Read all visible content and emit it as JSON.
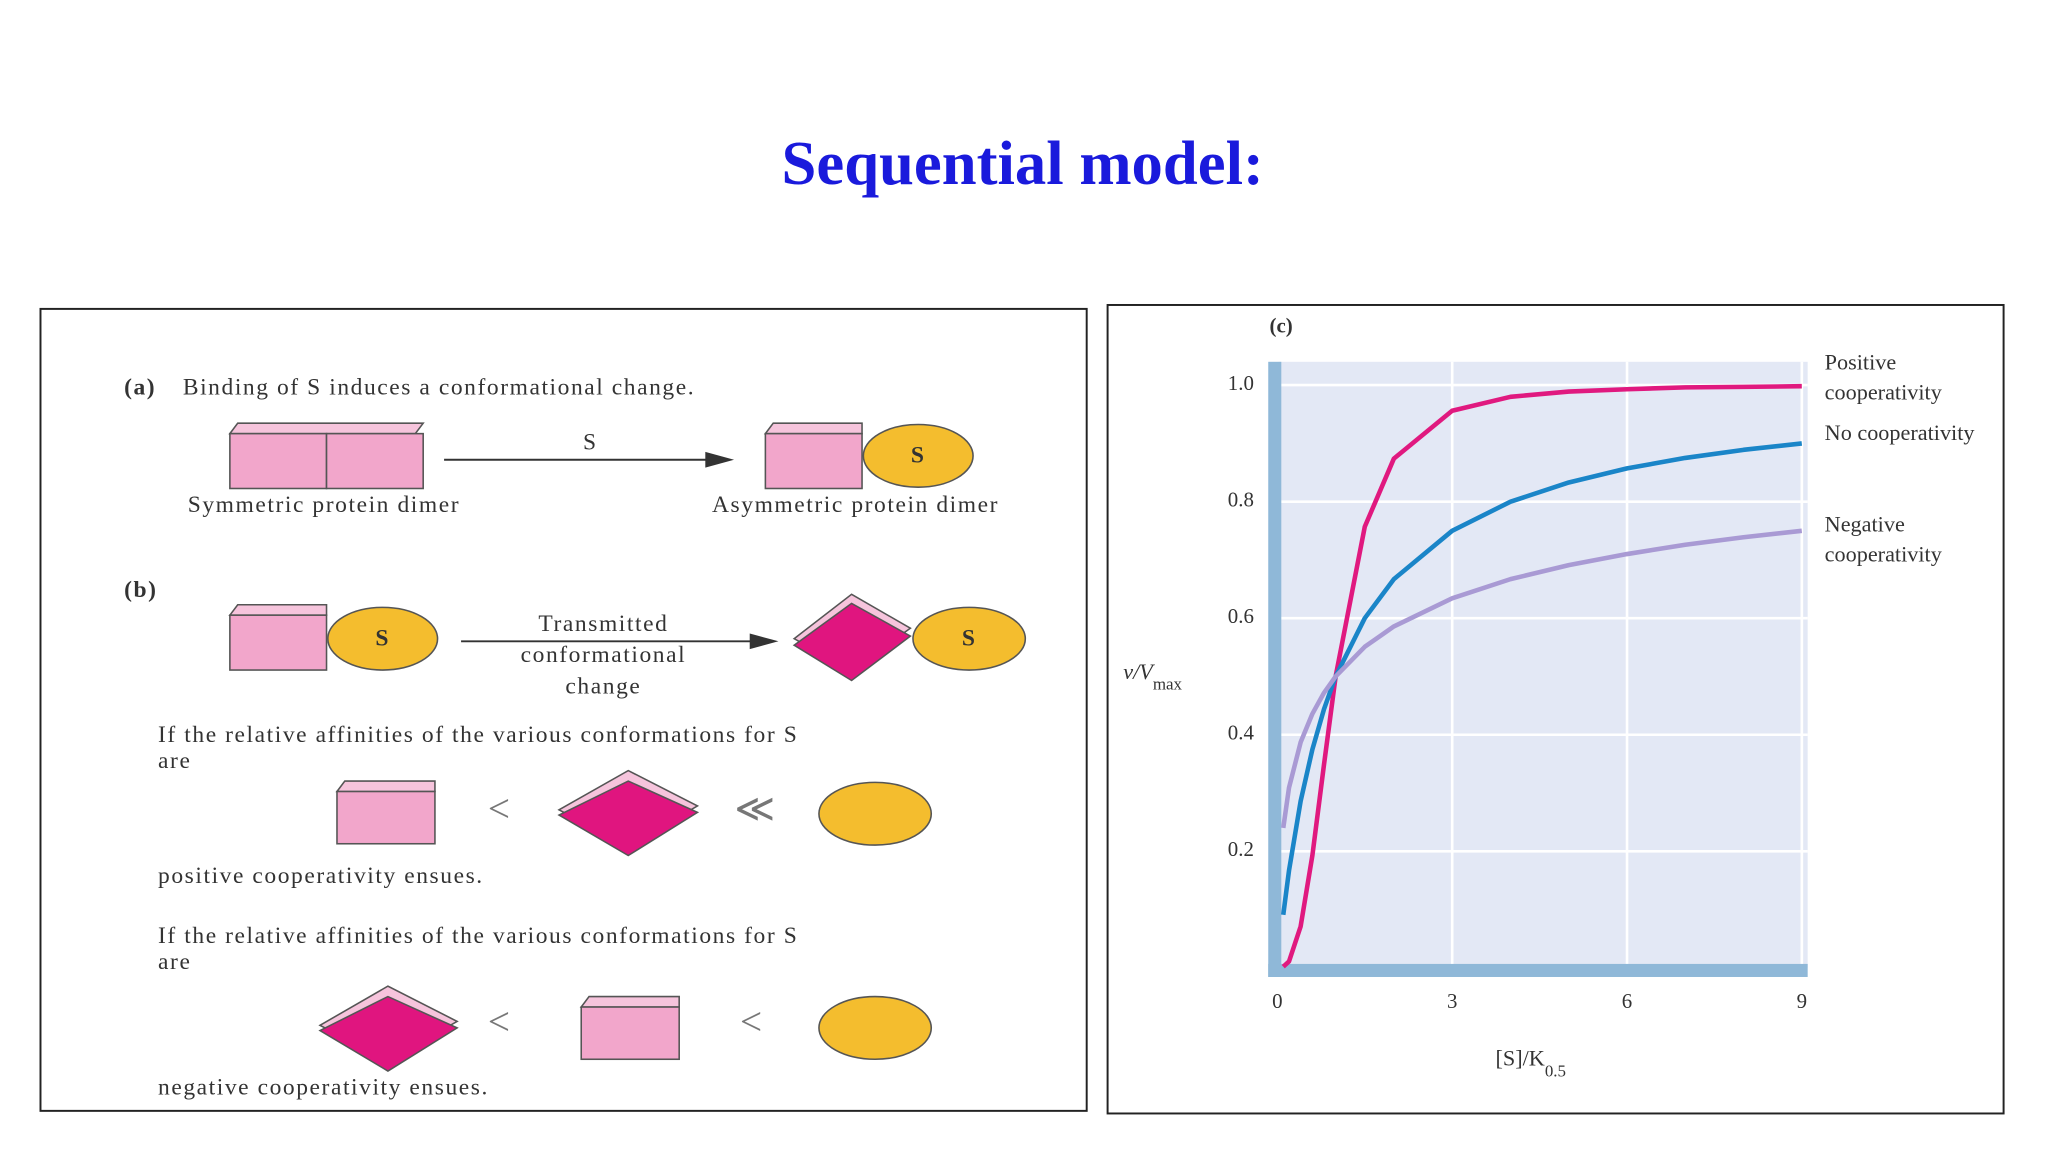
{
  "slide_title": "Sequential model:",
  "diagram": {
    "a_label": "(a)",
    "a_text": "Binding of S induces a conformational change.",
    "ligand": "S",
    "symmetric_label": "Symmetric protein dimer",
    "asymmetric_label": "Asymmetric protein dimer",
    "b_label": "(b)",
    "transmitted_label": "Transmitted conformational change",
    "positive_condition": "If the relative affinities of the various conformations for S are",
    "positive_relation_1": "<",
    "positive_relation_2": "≪",
    "positive_result": "positive cooperativity ensues.",
    "negative_condition": "If the relative affinities of the various conformations for S are",
    "negative_relation_1": "<",
    "negative_relation_2": "<",
    "negative_result": "negative cooperativity ensues."
  },
  "chart_data": {
    "type": "line",
    "panel_label": "(c)",
    "y_label": {
      "main": "v/V",
      "sub": "max"
    },
    "x_label": {
      "main": "[S]/K",
      "sub": "0.5"
    },
    "x": [
      0.1,
      0.2,
      0.4,
      0.6,
      0.8,
      1,
      1.5,
      2,
      3,
      4,
      5,
      6,
      7,
      8,
      9
    ],
    "series": [
      {
        "name": "Positive cooperativity",
        "color": "#e0197f",
        "values": [
          0.002,
          0.011,
          0.071,
          0.193,
          0.349,
          0.5,
          0.757,
          0.874,
          0.956,
          0.98,
          0.989,
          0.993,
          0.996,
          0.997,
          0.998
        ]
      },
      {
        "name": "No cooperativity",
        "color": "#1a85c8",
        "values": [
          0.091,
          0.167,
          0.286,
          0.375,
          0.444,
          0.5,
          0.6,
          0.667,
          0.75,
          0.8,
          0.833,
          0.857,
          0.875,
          0.889,
          0.9
        ]
      },
      {
        "name": "Negative cooperativity",
        "color": "#a99ad4",
        "values": [
          0.24,
          0.309,
          0.387,
          0.436,
          0.472,
          0.5,
          0.551,
          0.586,
          0.634,
          0.667,
          0.691,
          0.71,
          0.726,
          0.739,
          0.75
        ]
      }
    ],
    "xlim": [
      0,
      9.1
    ],
    "ylim": [
      0,
      1.04
    ],
    "xticks": [
      0,
      3,
      6,
      9
    ],
    "yticks": [
      0.2,
      0.4,
      0.6,
      0.8,
      {
        "value": 1,
        "label": "1.0"
      }
    ],
    "grid": true
  }
}
